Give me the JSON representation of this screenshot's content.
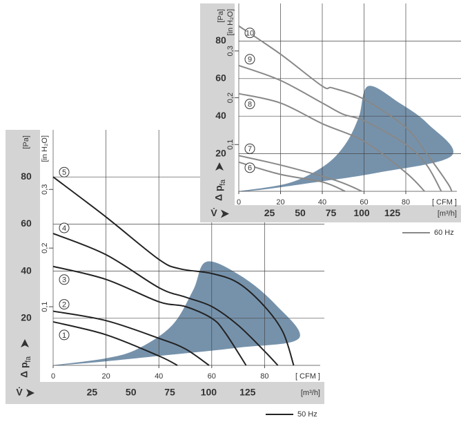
{
  "chart_data": [
    {
      "type": "line",
      "legend": "50 Hz",
      "ylabel": "Δ p",
      "ylabel_sub": "fa",
      "xlabel": "V̇",
      "y_unit": "[Pa]",
      "y2_unit": "[in H₂O]",
      "x_unit": "[ CFM ]",
      "x2_unit": "[m³/h]",
      "xlim": [
        0,
        100
      ],
      "ylim": [
        0,
        100
      ],
      "xticks": [
        0,
        20,
        40,
        60,
        80
      ],
      "yticks": [
        20,
        40,
        60,
        80
      ],
      "y2lim": [
        0,
        0.4016
      ],
      "y2ticks": [
        {
          "value": 0.1,
          "label": "0,1"
        },
        {
          "value": 0.2,
          "label": "0,2"
        },
        {
          "value": 0.3,
          "label": "0,3"
        }
      ],
      "x2lim": [
        0,
        169.9
      ],
      "x2ticks": [
        25,
        50,
        75,
        100,
        125
      ],
      "grid": true,
      "series": [
        {
          "name": "1",
          "color": "#222222",
          "x": [
            0,
            20,
            40,
            47
          ],
          "values": [
            18.5,
            13,
            4,
            0
          ]
        },
        {
          "name": "2",
          "color": "#222222",
          "x": [
            0,
            20,
            40,
            50,
            59
          ],
          "values": [
            23,
            19,
            11.5,
            7,
            0
          ]
        },
        {
          "name": "3",
          "color": "#222222",
          "x": [
            0,
            20,
            40,
            50,
            60,
            65,
            73
          ],
          "values": [
            42,
            36.5,
            27,
            25,
            20,
            14,
            0
          ]
        },
        {
          "name": "4",
          "color": "#222222",
          "x": [
            0,
            20,
            40,
            50,
            60,
            70,
            80,
            85
          ],
          "values": [
            56,
            47,
            33,
            29,
            25,
            17,
            6,
            0
          ]
        },
        {
          "name": "5",
          "color": "#222222",
          "x": [
            0,
            20,
            40,
            48,
            60,
            70,
            80,
            87,
            91
          ],
          "values": [
            80,
            63,
            45,
            41,
            39,
            35,
            25,
            14,
            0
          ]
        }
      ],
      "region": {
        "color": "#6f8ca6",
        "x": [
          0,
          20,
          32,
          45,
          53,
          58,
          71,
          84,
          93,
          70,
          40,
          15
        ],
        "y": [
          0,
          3,
          7,
          17,
          32,
          44,
          38,
          26,
          11.5,
          7.5,
          4,
          1.2
        ]
      }
    },
    {
      "type": "line",
      "legend": "60 Hz",
      "ylabel": "Δ p",
      "ylabel_sub": "fa",
      "xlabel": "V̇",
      "y_unit": "[Pa]",
      "y2_unit": "[in H₂O]",
      "x_unit": "[ CFM ]",
      "x2_unit": "[m³/h]",
      "xlim": [
        0,
        104
      ],
      "ylim": [
        0,
        100
      ],
      "xticks": [
        0,
        20,
        40,
        60,
        80
      ],
      "yticks": [
        20,
        40,
        60,
        80
      ],
      "y2lim": [
        0,
        0.4016
      ],
      "y2ticks": [
        {
          "value": 0.1,
          "label": "0,1"
        },
        {
          "value": 0.2,
          "label": "0,2"
        },
        {
          "value": 0.3,
          "label": "0,3"
        }
      ],
      "x2lim": [
        0,
        176.7
      ],
      "x2ticks": [
        25,
        50,
        75,
        100,
        125
      ],
      "grid": true,
      "series": [
        {
          "name": "6",
          "color": "#888888",
          "x": [
            0,
            20,
            40,
            51
          ],
          "values": [
            15.5,
            9,
            5,
            0
          ]
        },
        {
          "name": "7",
          "color": "#888888",
          "x": [
            0,
            20,
            40,
            50,
            59
          ],
          "values": [
            19,
            14,
            8,
            4.4,
            0
          ]
        },
        {
          "name": "8",
          "color": "#888888",
          "x": [
            0,
            20,
            40,
            60,
            80,
            89
          ],
          "values": [
            52,
            47,
            36,
            26.6,
            10,
            0
          ]
        },
        {
          "name": "9",
          "color": "#888888",
          "x": [
            0,
            20,
            40,
            50,
            60,
            80,
            90,
            97
          ],
          "values": [
            67,
            59,
            47,
            41,
            37.6,
            25,
            14,
            0
          ]
        },
        {
          "name": "10",
          "color": "#888888",
          "x": [
            0,
            20,
            40,
            45,
            60,
            80,
            90,
            100,
            102
          ],
          "values": [
            88,
            73,
            56,
            55,
            49,
            34,
            20,
            4.4,
            0
          ]
        }
      ],
      "region": {
        "color": "#6f8ca6",
        "x": [
          0,
          24,
          41,
          51,
          57.5,
          62,
          77,
          90.5,
          102,
          67,
          34,
          12
        ],
        "y": [
          0,
          4.4,
          13.6,
          25,
          39.5,
          56,
          47,
          36,
          19,
          10,
          4.4,
          1
        ]
      }
    }
  ]
}
